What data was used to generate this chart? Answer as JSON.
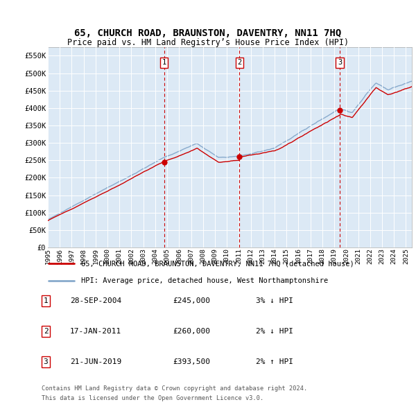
{
  "title": "65, CHURCH ROAD, BRAUNSTON, DAVENTRY, NN11 7HQ",
  "subtitle": "Price paid vs. HM Land Registry’s House Price Index (HPI)",
  "background_color": "#dce9f5",
  "outer_bg_color": "#ffffff",
  "ylim": [
    0,
    575000
  ],
  "yticks": [
    0,
    50000,
    100000,
    150000,
    200000,
    250000,
    300000,
    350000,
    400000,
    450000,
    500000,
    550000
  ],
  "ytick_labels": [
    "£0",
    "£50K",
    "£100K",
    "£150K",
    "£200K",
    "£250K",
    "£300K",
    "£350K",
    "£400K",
    "£450K",
    "£500K",
    "£550K"
  ],
  "xlim_start": 1995.0,
  "xlim_end": 2025.5,
  "xticks": [
    1995,
    1996,
    1997,
    1998,
    1999,
    2000,
    2001,
    2002,
    2003,
    2004,
    2005,
    2006,
    2007,
    2008,
    2009,
    2010,
    2011,
    2012,
    2013,
    2014,
    2015,
    2016,
    2017,
    2018,
    2019,
    2020,
    2021,
    2022,
    2023,
    2024,
    2025
  ],
  "sale_dates": [
    2004.74,
    2011.05,
    2019.47
  ],
  "sale_prices": [
    245000,
    260000,
    393500
  ],
  "sale_labels": [
    "1",
    "2",
    "3"
  ],
  "sale_info": [
    {
      "label": "1",
      "date": "28-SEP-2004",
      "price": "£245,000",
      "pct": "3%",
      "dir": "↓",
      "vs": "HPI"
    },
    {
      "label": "2",
      "date": "17-JAN-2011",
      "price": "£260,000",
      "pct": "2%",
      "dir": "↓",
      "vs": "HPI"
    },
    {
      "label": "3",
      "date": "21-JUN-2019",
      "price": "£393,500",
      "pct": "2%",
      "dir": "↑",
      "vs": "HPI"
    }
  ],
  "legend_line1": "65, CHURCH ROAD, BRAUNSTON, DAVENTRY, NN11 7HQ (detached house)",
  "legend_line2": "HPI: Average price, detached house, West Northamptonshire",
  "footer1": "Contains HM Land Registry data © Crown copyright and database right 2024.",
  "footer2": "This data is licensed under the Open Government Licence v3.0.",
  "red_color": "#cc0000",
  "blue_color": "#88aacc",
  "marker_box_color": "#cc0000"
}
